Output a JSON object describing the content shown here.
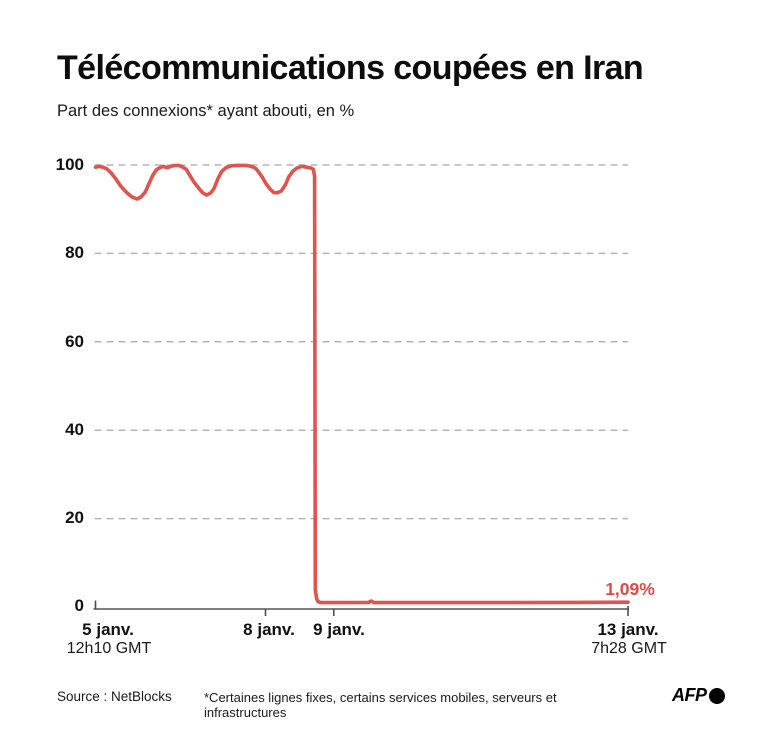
{
  "header": {
    "title": "Télécommunications coupées en Iran",
    "subtitle": "Part des connexions* ayant abouti, en %"
  },
  "chart_data": {
    "type": "line",
    "title": "Télécommunications coupées en Iran",
    "ylabel": "Part des connexions ayant abouti, en %",
    "ylim": [
      0,
      100
    ],
    "grid": "horizontal-dashed",
    "legend": "none",
    "colors": {
      "line": "#e0534f",
      "annotation": "#dd4b47",
      "gridline": "#b5b5b5",
      "axis": "#7e7e7e",
      "tick": "#4d4d4d",
      "text": "#111111"
    },
    "y_ticks": [
      "100",
      "80",
      "60",
      "40",
      "20",
      "0"
    ],
    "x_range_days": 7.8,
    "x_ticks": [
      {
        "label": "5 janv.",
        "sublabel": "12h10 GMT",
        "day": 0
      },
      {
        "label": "8 janv.",
        "sublabel": "",
        "day": 2.49
      },
      {
        "label": "9 janv.",
        "sublabel": "",
        "day": 3.49
      },
      {
        "label": "13 janv.",
        "sublabel": "7h28 GMT",
        "day": 7.8
      }
    ],
    "annotation": {
      "label": "1,09%",
      "value": 1.09,
      "day": 7.8
    },
    "series": [
      {
        "name": "Part des connexions ayant abouti (%)",
        "points": [
          [
            0.0,
            99.5
          ],
          [
            0.05,
            99.7
          ],
          [
            0.11,
            99.5
          ],
          [
            0.17,
            99.1
          ],
          [
            0.23,
            98.2
          ],
          [
            0.3,
            96.8
          ],
          [
            0.37,
            95.2
          ],
          [
            0.46,
            93.7
          ],
          [
            0.53,
            92.8
          ],
          [
            0.61,
            92.3
          ],
          [
            0.67,
            92.8
          ],
          [
            0.73,
            93.9
          ],
          [
            0.78,
            95.7
          ],
          [
            0.84,
            97.7
          ],
          [
            0.89,
            98.9
          ],
          [
            0.93,
            99.3
          ],
          [
            0.99,
            99.7
          ],
          [
            1.05,
            99.4
          ],
          [
            1.11,
            99.7
          ],
          [
            1.16,
            99.9
          ],
          [
            1.22,
            99.9
          ],
          [
            1.28,
            99.5
          ],
          [
            1.33,
            99.0
          ],
          [
            1.38,
            97.7
          ],
          [
            1.44,
            96.2
          ],
          [
            1.52,
            94.6
          ],
          [
            1.57,
            93.7
          ],
          [
            1.63,
            93.2
          ],
          [
            1.69,
            93.7
          ],
          [
            1.74,
            94.8
          ],
          [
            1.79,
            96.8
          ],
          [
            1.85,
            98.6
          ],
          [
            1.91,
            99.4
          ],
          [
            1.98,
            99.8
          ],
          [
            2.06,
            99.9
          ],
          [
            2.13,
            99.9
          ],
          [
            2.2,
            99.9
          ],
          [
            2.28,
            99.7
          ],
          [
            2.34,
            99.3
          ],
          [
            2.38,
            98.6
          ],
          [
            2.44,
            97.3
          ],
          [
            2.5,
            95.7
          ],
          [
            2.56,
            94.5
          ],
          [
            2.61,
            93.8
          ],
          [
            2.66,
            93.7
          ],
          [
            2.72,
            94.1
          ],
          [
            2.78,
            95.5
          ],
          [
            2.83,
            97.3
          ],
          [
            2.89,
            98.6
          ],
          [
            2.95,
            99.3
          ],
          [
            3.02,
            99.7
          ],
          [
            3.1,
            99.5
          ],
          [
            3.16,
            99.3
          ],
          [
            3.19,
            99.0
          ],
          [
            3.21,
            97.5
          ],
          [
            3.22,
            3.8
          ],
          [
            3.24,
            1.8
          ],
          [
            3.26,
            1.2
          ],
          [
            3.3,
            1.0
          ],
          [
            3.6,
            1.0
          ],
          [
            4.0,
            1.05
          ],
          [
            4.04,
            1.35
          ],
          [
            4.08,
            1.0
          ],
          [
            5.0,
            1.0
          ],
          [
            6.0,
            1.0
          ],
          [
            7.0,
            1.05
          ],
          [
            7.8,
            1.09
          ]
        ]
      }
    ]
  },
  "footer": {
    "source": "Source : NetBlocks",
    "note": "*Certaines lignes fixes, certains services mobiles, serveurs et infrastructures",
    "brand": "AFP"
  }
}
